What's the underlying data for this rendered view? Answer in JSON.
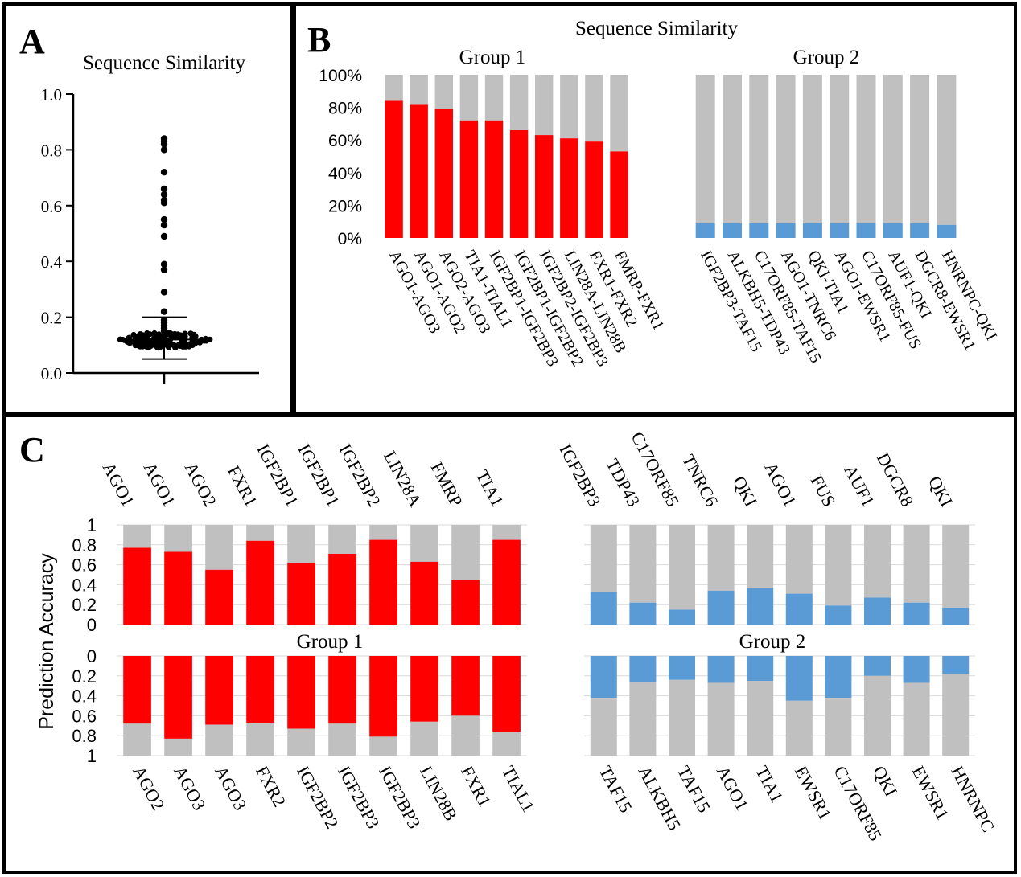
{
  "panel_labels": {
    "a": "A",
    "b": "B",
    "c": "C"
  },
  "panel_a_title": "Sequence Similarity",
  "panel_b_title": "Sequence Similarity",
  "panel_c_ylabel": "Prediction Accuracy",
  "group_labels": {
    "b_group1": "Group 1",
    "b_group2": "Group 2",
    "c_group1": "Group 1",
    "c_group2": "Group 2"
  },
  "colors": {
    "group1": "#ff0000",
    "group2": "#5b9bd5",
    "remainder": "#c0c0c0",
    "frame": "#000000",
    "grid": "#d9d9d9"
  },
  "chart_data": [
    {
      "id": "A",
      "type": "scatter",
      "title": "Sequence Similarity",
      "ylim": [
        0.0,
        1.0
      ],
      "yticks": [
        "0.0",
        "0.2",
        "0.4",
        "0.6",
        "0.8",
        "1.0"
      ],
      "outliers": [
        0.84,
        0.83,
        0.82,
        0.8,
        0.72,
        0.66,
        0.64,
        0.62,
        0.61,
        0.55,
        0.53,
        0.49,
        0.39,
        0.37,
        0.29,
        0.22,
        0.19,
        0.18,
        0.17,
        0.16,
        0.15
      ],
      "cluster": {
        "center": 0.12,
        "low": 0.09,
        "high": 0.145
      },
      "whiskers": {
        "low": 0.05,
        "high": 0.2
      },
      "grid": false
    },
    {
      "id": "B",
      "type": "bar",
      "stacked": true,
      "title": "Sequence Similarity",
      "ylim": [
        0,
        100
      ],
      "yticks": [
        "0%",
        "20%",
        "40%",
        "60%",
        "80%",
        "100%"
      ],
      "series": [
        {
          "group": "Group 1",
          "categories": [
            "AGO1-AGO3",
            "AGO1-AGO2",
            "AGO2-AGO3",
            "TIA1-TIAL1",
            "IGF2BP1-IGF2BP3",
            "IGF2BP1-IGF2BP2",
            "IGF2BP2-IGF2BP3",
            "LIN28A-LIN28B",
            "FXR1-FXR2",
            "FMRP-FXR1"
          ],
          "values": [
            84,
            82,
            79,
            72,
            72,
            66,
            63,
            61,
            59,
            53
          ]
        },
        {
          "group": "Group 2",
          "categories": [
            "IGF2BP3-TAF15",
            "ALKBH5-TDP43",
            "C17ORF85-TAF15",
            "AGO1-TNRC6",
            "QKI-TIA1",
            "AGO1-EWSR1",
            "C17ORF85-FUS",
            "AUF1-QKI",
            "DGCR8-EWSR1",
            "HNRNPC-QKI"
          ],
          "values": [
            9,
            9,
            9,
            9,
            9,
            9,
            9,
            9,
            9,
            8
          ]
        }
      ]
    },
    {
      "id": "C",
      "type": "bar",
      "stacked": true,
      "ylabel": "Prediction Accuracy",
      "ylim": [
        0,
        1
      ],
      "yticks": [
        "0",
        "0.2",
        "0.4",
        "0.6",
        "0.8",
        "1"
      ],
      "series": [
        {
          "group": "Group 1",
          "top_categories": [
            "AGO1",
            "AGO1",
            "AGO2",
            "FXR1",
            "IGF2BP1",
            "IGF2BP1",
            "IGF2BP2",
            "LIN28A",
            "FMRP",
            "TIA1"
          ],
          "top_values": [
            0.77,
            0.73,
            0.55,
            0.84,
            0.62,
            0.71,
            0.85,
            0.63,
            0.45,
            0.85
          ],
          "bottom_categories": [
            "AGO2",
            "AGO3",
            "AGO3",
            "FXR2",
            "IGF2BP2",
            "IGF2BP3",
            "IGF2BP3",
            "LIN28B",
            "FXR1",
            "TIAL1"
          ],
          "bottom_values": [
            0.68,
            0.83,
            0.69,
            0.67,
            0.73,
            0.68,
            0.81,
            0.66,
            0.6,
            0.76
          ]
        },
        {
          "group": "Group 2",
          "top_categories": [
            "IGF2BP3",
            "TDP43",
            "C17ORF85",
            "TNRC6",
            "QKI",
            "AGO1",
            "FUS",
            "AUF1",
            "DGCR8",
            "QKI"
          ],
          "top_values": [
            0.33,
            0.22,
            0.15,
            0.34,
            0.37,
            0.31,
            0.19,
            0.27,
            0.22,
            0.17
          ],
          "bottom_categories": [
            "TAF15",
            "ALKBH5",
            "TAF15",
            "AGO1",
            "TIA1",
            "EWSR1",
            "C17ORF85",
            "QKI",
            "EWSR1",
            "HNRNPC"
          ],
          "bottom_values": [
            0.42,
            0.26,
            0.24,
            0.27,
            0.25,
            0.45,
            0.42,
            0.2,
            0.27,
            0.18
          ]
        }
      ]
    }
  ]
}
